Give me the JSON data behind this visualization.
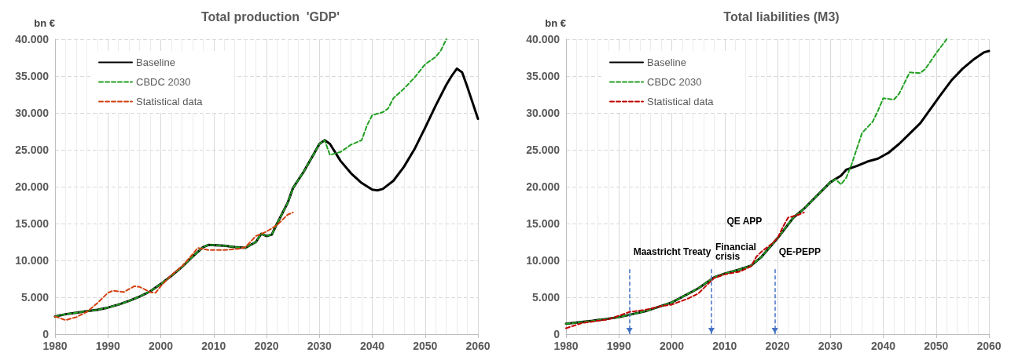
{
  "chart_data": [
    {
      "type": "line",
      "title": "Total production  'GDP'",
      "ylabel": "bn €",
      "xlim": [
        1980,
        2060
      ],
      "xticks": [
        1980,
        1990,
        2000,
        2010,
        2020,
        2030,
        2040,
        2050,
        2060
      ],
      "ylim": [
        0,
        40000
      ],
      "yticks": [
        0,
        {
          "value": 5000,
          "label": "5.000"
        },
        {
          "value": 10000,
          "label": "10.000"
        },
        {
          "value": 15000,
          "label": "15.000"
        },
        {
          "value": 20000,
          "label": "20.000"
        },
        {
          "value": 25000,
          "label": "25.000"
        },
        {
          "value": 30000,
          "label": "30.000"
        },
        {
          "value": 35000,
          "label": "35.000"
        },
        {
          "value": 40000,
          "label": "40.000"
        }
      ],
      "grid": true,
      "legend": "top left",
      "marker": "none",
      "series": [
        {
          "name": "Baseline",
          "color": "#000000",
          "line_style": "solid",
          "x": [
            1980,
            1982,
            1984,
            1986,
            1988,
            1990,
            1992,
            1994,
            1996,
            1998,
            2000,
            2002,
            2004,
            2006,
            2008,
            2009,
            2012,
            2014,
            2016,
            2018,
            2019,
            2020,
            2021,
            2022,
            2024,
            2025,
            2027,
            2029,
            2030,
            2031,
            2032,
            2034,
            2036,
            2038,
            2040,
            2041,
            2042,
            2044,
            2046,
            2048,
            2050,
            2052,
            2054,
            2055,
            2056,
            2057,
            2058,
            2060
          ],
          "values": [
            2400,
            2700,
            2900,
            3100,
            3300,
            3600,
            4000,
            4500,
            5100,
            5800,
            6800,
            7900,
            9100,
            10500,
            11800,
            12100,
            12000,
            11800,
            11700,
            12500,
            13600,
            13300,
            13500,
            15000,
            17800,
            19800,
            22000,
            24500,
            25800,
            26300,
            25800,
            23500,
            21800,
            20500,
            19600,
            19500,
            19700,
            20800,
            22700,
            25100,
            28000,
            31000,
            33800,
            35000,
            36000,
            35500,
            33500,
            29200
          ]
        },
        {
          "name": "CBDC 2030",
          "color": "#22a022",
          "line_style": "dashed",
          "x": [
            1980,
            1982,
            1984,
            1986,
            1988,
            1990,
            1992,
            1994,
            1996,
            1998,
            2000,
            2002,
            2004,
            2006,
            2008,
            2009,
            2012,
            2014,
            2016,
            2018,
            2019,
            2020,
            2021,
            2022,
            2024,
            2025,
            2027,
            2029,
            2030,
            2031,
            2032,
            2034,
            2036,
            2038,
            2039,
            2040,
            2042,
            2043,
            2044,
            2046,
            2048,
            2050,
            2052,
            2053,
            2054
          ],
          "values": [
            2400,
            2700,
            2900,
            3100,
            3300,
            3600,
            4000,
            4500,
            5100,
            5800,
            6800,
            7900,
            9100,
            10500,
            11800,
            12100,
            12000,
            11800,
            11700,
            12500,
            13600,
            13300,
            13500,
            15000,
            17800,
            19800,
            22000,
            24500,
            25800,
            26300,
            24300,
            24700,
            25700,
            26300,
            28300,
            29700,
            30100,
            30600,
            32000,
            33300,
            34800,
            36600,
            37600,
            38500,
            40000
          ]
        },
        {
          "name": "Statistical data",
          "color": "#d2400f",
          "line_style": "dashed",
          "x": [
            1980,
            1982,
            1984,
            1986,
            1988,
            1990,
            1991,
            1993,
            1995,
            1996,
            1998,
            1999,
            2000,
            2002,
            2004,
            2006,
            2007,
            2009,
            2012,
            2015,
            2016,
            2018,
            2020,
            2022,
            2024,
            2025
          ],
          "values": [
            2400,
            1900,
            2300,
            3000,
            4200,
            5600,
            5900,
            5700,
            6500,
            6400,
            5700,
            5600,
            6500,
            8000,
            9200,
            10800,
            11700,
            11400,
            11400,
            11600,
            11800,
            13300,
            13900,
            14800,
            16200,
            16500
          ]
        }
      ]
    },
    {
      "type": "line",
      "title": "Total liabilities (M3)",
      "ylabel": "bn €",
      "xlim": [
        1980,
        2060
      ],
      "xticks": [
        1980,
        1990,
        2000,
        2010,
        2020,
        2030,
        2040,
        2050,
        2060
      ],
      "ylim": [
        0,
        40000
      ],
      "yticks": [
        0,
        {
          "value": 5000,
          "label": "5.000"
        },
        {
          "value": 10000,
          "label": "10.000"
        },
        {
          "value": 15000,
          "label": "15.000"
        },
        {
          "value": 20000,
          "label": "20.000"
        },
        {
          "value": 25000,
          "label": "25.000"
        },
        {
          "value": 30000,
          "label": "30.000"
        },
        {
          "value": 35000,
          "label": "35.000"
        },
        {
          "value": 40000,
          "label": "40.000"
        }
      ],
      "grid": true,
      "legend": "top left",
      "marker": "none",
      "annotations": [
        "QE APP"
      ],
      "ref_lines": [
        {
          "axis": "x",
          "value": 1992,
          "label": "Maastricht Treaty",
          "color": "#4472c4",
          "line_style": "dashed"
        },
        {
          "axis": "x",
          "value": 2007.5,
          "label": "Financial\ncrisis",
          "color": "#4472c4",
          "line_style": "dashed"
        },
        {
          "axis": "x",
          "value": 2019.5,
          "label": "QE-PEPP",
          "color": "#4472c4",
          "line_style": "dashed"
        }
      ],
      "series": [
        {
          "name": "Baseline",
          "color": "#000000",
          "line_style": "solid",
          "x": [
            1980,
            1985,
            1990,
            1995,
            2000,
            2005,
            2008,
            2010,
            2013,
            2015,
            2017,
            2020,
            2023,
            2025,
            2030,
            2032,
            2033,
            2035,
            2037,
            2039,
            2041,
            2043,
            2045,
            2047,
            2049,
            2051,
            2053,
            2055,
            2057,
            2059,
            2060
          ],
          "values": [
            1400,
            1800,
            2300,
            3100,
            4300,
            6200,
            7700,
            8200,
            8800,
            9300,
            10500,
            13000,
            15800,
            17000,
            20600,
            21500,
            22300,
            22800,
            23400,
            23800,
            24600,
            25800,
            27200,
            28600,
            30600,
            32600,
            34500,
            36000,
            37200,
            38200,
            38400
          ]
        },
        {
          "name": "CBDC 2030",
          "color": "#22a022",
          "line_style": "dashed",
          "x": [
            1980,
            1985,
            1990,
            1995,
            2000,
            2005,
            2008,
            2010,
            2013,
            2015,
            2017,
            2020,
            2023,
            2025,
            2030,
            2031,
            2032,
            2033,
            2034,
            2036,
            2038,
            2039,
            2040,
            2042,
            2043,
            2045,
            2047,
            2048,
            2050,
            2052
          ],
          "values": [
            1400,
            1800,
            2300,
            3100,
            4300,
            6200,
            7700,
            8200,
            8800,
            9300,
            10500,
            13000,
            15800,
            17000,
            20600,
            21000,
            20300,
            21200,
            23000,
            27300,
            28800,
            30300,
            32000,
            31800,
            32600,
            35500,
            35400,
            36000,
            38100,
            40000
          ]
        },
        {
          "name": "Statistical data",
          "color": "#c00000",
          "line_style": "dashed",
          "x": [
            1980,
            1983,
            1986,
            1988,
            1990,
            1992,
            1995,
            1998,
            2000,
            2003,
            2005,
            2007,
            2008,
            2010,
            2013,
            2015,
            2016,
            2017,
            2019,
            2020,
            2021,
            2022,
            2024,
            2025
          ],
          "values": [
            800,
            1500,
            1800,
            2000,
            2500,
            3000,
            3300,
            3800,
            4000,
            4800,
            5500,
            6900,
            7600,
            8100,
            8500,
            9200,
            10500,
            11200,
            12300,
            13000,
            14500,
            15800,
            16200,
            16500
          ]
        }
      ]
    }
  ]
}
